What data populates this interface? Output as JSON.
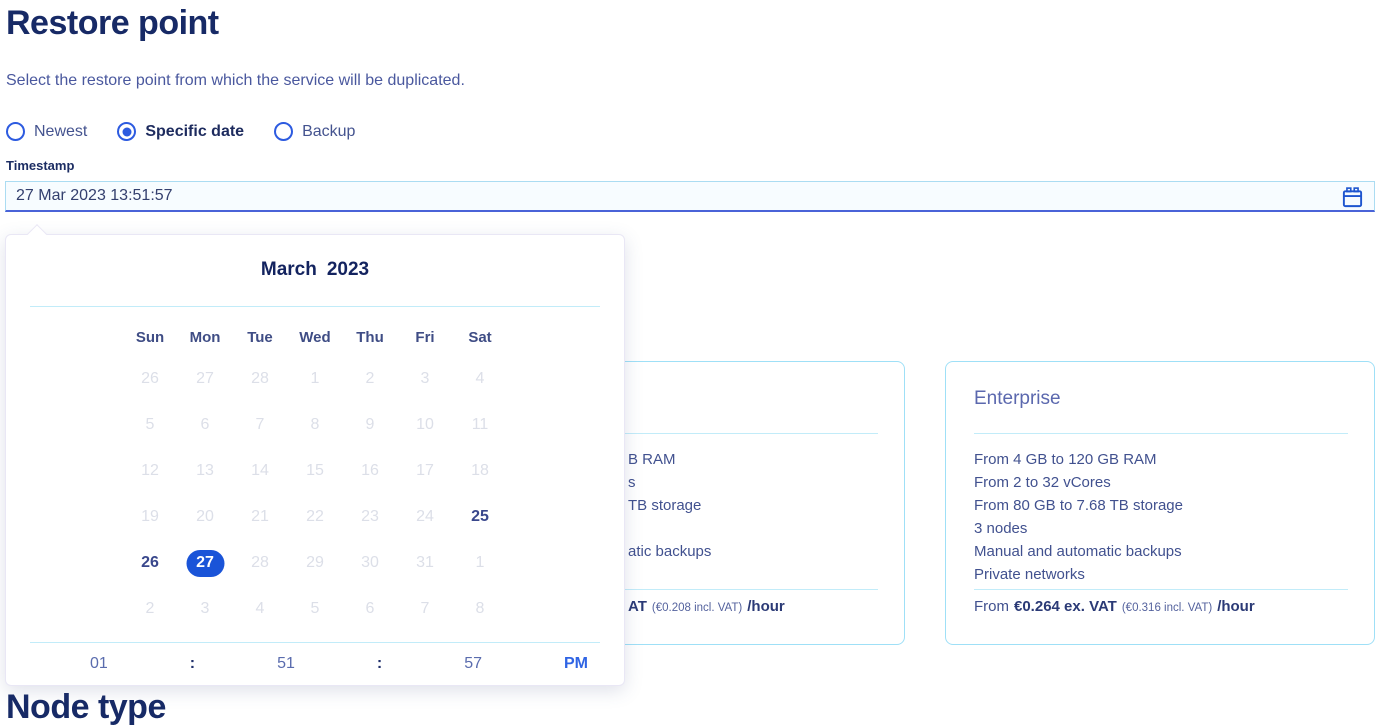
{
  "page": {
    "title": "Restore point",
    "description": "Select the restore point from which the service will be duplicated.",
    "next_section_title": "Node type"
  },
  "restore_options": {
    "items": [
      {
        "label": "Newest",
        "selected": false
      },
      {
        "label": "Specific date",
        "selected": true
      },
      {
        "label": "Backup",
        "selected": false
      }
    ]
  },
  "timestamp_field": {
    "label": "Timestamp",
    "value": "27 Mar 2023 13:51:57",
    "icon": "calendar-icon"
  },
  "datepicker": {
    "month": "March",
    "year": "2023",
    "day_headers": [
      "Sun",
      "Mon",
      "Tue",
      "Wed",
      "Thu",
      "Fri",
      "Sat"
    ],
    "weeks": [
      [
        {
          "day": "26",
          "state": "disabled"
        },
        {
          "day": "27",
          "state": "disabled"
        },
        {
          "day": "28",
          "state": "disabled"
        },
        {
          "day": "1",
          "state": "disabled"
        },
        {
          "day": "2",
          "state": "disabled"
        },
        {
          "day": "3",
          "state": "disabled"
        },
        {
          "day": "4",
          "state": "disabled"
        }
      ],
      [
        {
          "day": "5",
          "state": "disabled"
        },
        {
          "day": "6",
          "state": "disabled"
        },
        {
          "day": "7",
          "state": "disabled"
        },
        {
          "day": "8",
          "state": "disabled"
        },
        {
          "day": "9",
          "state": "disabled"
        },
        {
          "day": "10",
          "state": "disabled"
        },
        {
          "day": "11",
          "state": "disabled"
        }
      ],
      [
        {
          "day": "12",
          "state": "disabled"
        },
        {
          "day": "13",
          "state": "disabled"
        },
        {
          "day": "14",
          "state": "disabled"
        },
        {
          "day": "15",
          "state": "disabled"
        },
        {
          "day": "16",
          "state": "disabled"
        },
        {
          "day": "17",
          "state": "disabled"
        },
        {
          "day": "18",
          "state": "disabled"
        }
      ],
      [
        {
          "day": "19",
          "state": "disabled"
        },
        {
          "day": "20",
          "state": "disabled"
        },
        {
          "day": "21",
          "state": "disabled"
        },
        {
          "day": "22",
          "state": "disabled"
        },
        {
          "day": "23",
          "state": "disabled"
        },
        {
          "day": "24",
          "state": "disabled"
        },
        {
          "day": "25",
          "state": "normal"
        }
      ],
      [
        {
          "day": "26",
          "state": "normal"
        },
        {
          "day": "27",
          "state": "selected"
        },
        {
          "day": "28",
          "state": "disabled"
        },
        {
          "day": "29",
          "state": "disabled"
        },
        {
          "day": "30",
          "state": "disabled"
        },
        {
          "day": "31",
          "state": "disabled"
        },
        {
          "day": "1",
          "state": "disabled"
        }
      ],
      [
        {
          "day": "2",
          "state": "disabled"
        },
        {
          "day": "3",
          "state": "disabled"
        },
        {
          "day": "4",
          "state": "disabled"
        },
        {
          "day": "5",
          "state": "disabled"
        },
        {
          "day": "6",
          "state": "disabled"
        },
        {
          "day": "7",
          "state": "disabled"
        },
        {
          "day": "8",
          "state": "disabled"
        }
      ]
    ],
    "time": {
      "hour": "01",
      "separator": ":",
      "minute": "51",
      "second": "57",
      "meridiem": "PM"
    }
  },
  "plans": {
    "partial_card": {
      "feature_fragments": [
        "B RAM",
        "s",
        "TB storage",
        "",
        "atic backups",
        ""
      ],
      "price_fragments": {
        "bold_start": "AT",
        "incl_vat": "(€0.208 incl. VAT)",
        "per": "/hour"
      }
    },
    "enterprise_card": {
      "name": "Enterprise",
      "features": [
        "From 4 GB to 120 GB RAM",
        "From 2 to 32 vCores",
        "From 80 GB to 7.68 TB storage",
        "3 nodes",
        "Manual and automatic backups",
        "Private networks"
      ],
      "price": {
        "prefix": "From",
        "amount": "€0.264 ex. VAT",
        "incl_vat": "(€0.316 incl. VAT)",
        "per": "/hour"
      }
    }
  },
  "colors": {
    "accent_blue": "#1a54d8",
    "heading_navy": "#172a66",
    "body_slate": "#4a589e",
    "card_border_cyan": "#9fe0f7",
    "divider_cyan": "#c2ecf9",
    "disabled_day": "#dcdfe8"
  }
}
